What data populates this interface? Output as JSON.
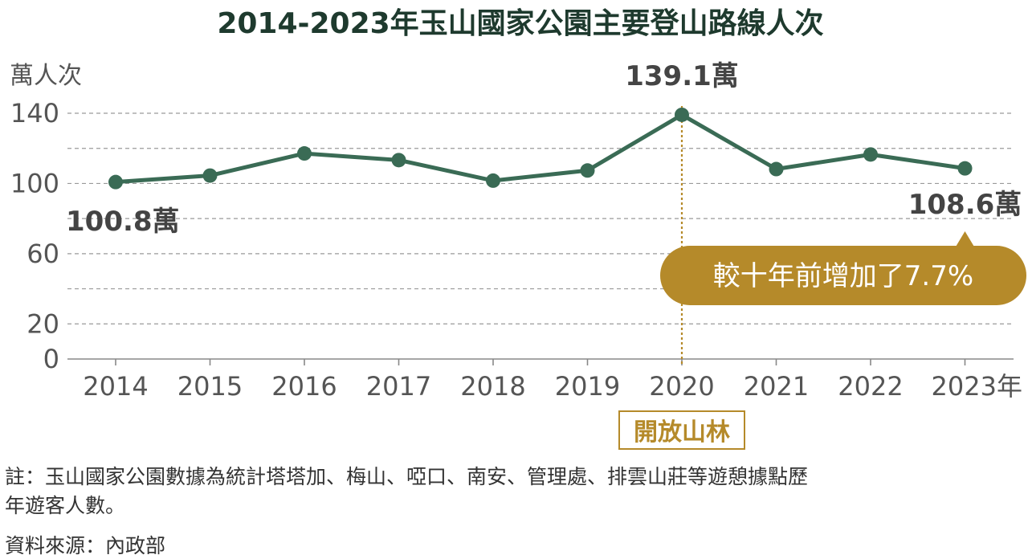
{
  "chart_data": {
    "type": "line",
    "title": "2014-2023年玉山國家公園主要登山路線人次",
    "ylabel": "萬人次",
    "x": [
      "2014",
      "2015",
      "2016",
      "2017",
      "2018",
      "2019",
      "2020",
      "2021",
      "2022",
      "2023年"
    ],
    "series": [
      {
        "values": [
          100.8,
          104.5,
          117.1,
          113.3,
          101.6,
          107.4,
          139.1,
          108.2,
          116.5,
          108.6
        ]
      }
    ],
    "ylim": [
      0,
      140
    ],
    "yticks": [
      "0",
      "20",
      "60",
      "100",
      "140"
    ],
    "y_gridlines": [
      20,
      40,
      60,
      80,
      100,
      120,
      140
    ],
    "grid": true,
    "line_color": "#3a6b55",
    "annotations": {
      "first_label": "100.8萬",
      "peak_label": "139.1萬",
      "last_label": "108.6萬",
      "callout": "較十年前增加了7.7%",
      "event_label": "開放山林",
      "event_x": "2020",
      "accent_color": "#b58a2a"
    }
  },
  "footnote": {
    "line1": "註：玉山國家公園數據為統計塔塔加、梅山、啞口、南安、管理處、排雲山莊等遊憩據點歷",
    "line2": "年遊客人數。"
  },
  "source": "資料來源：內政部"
}
